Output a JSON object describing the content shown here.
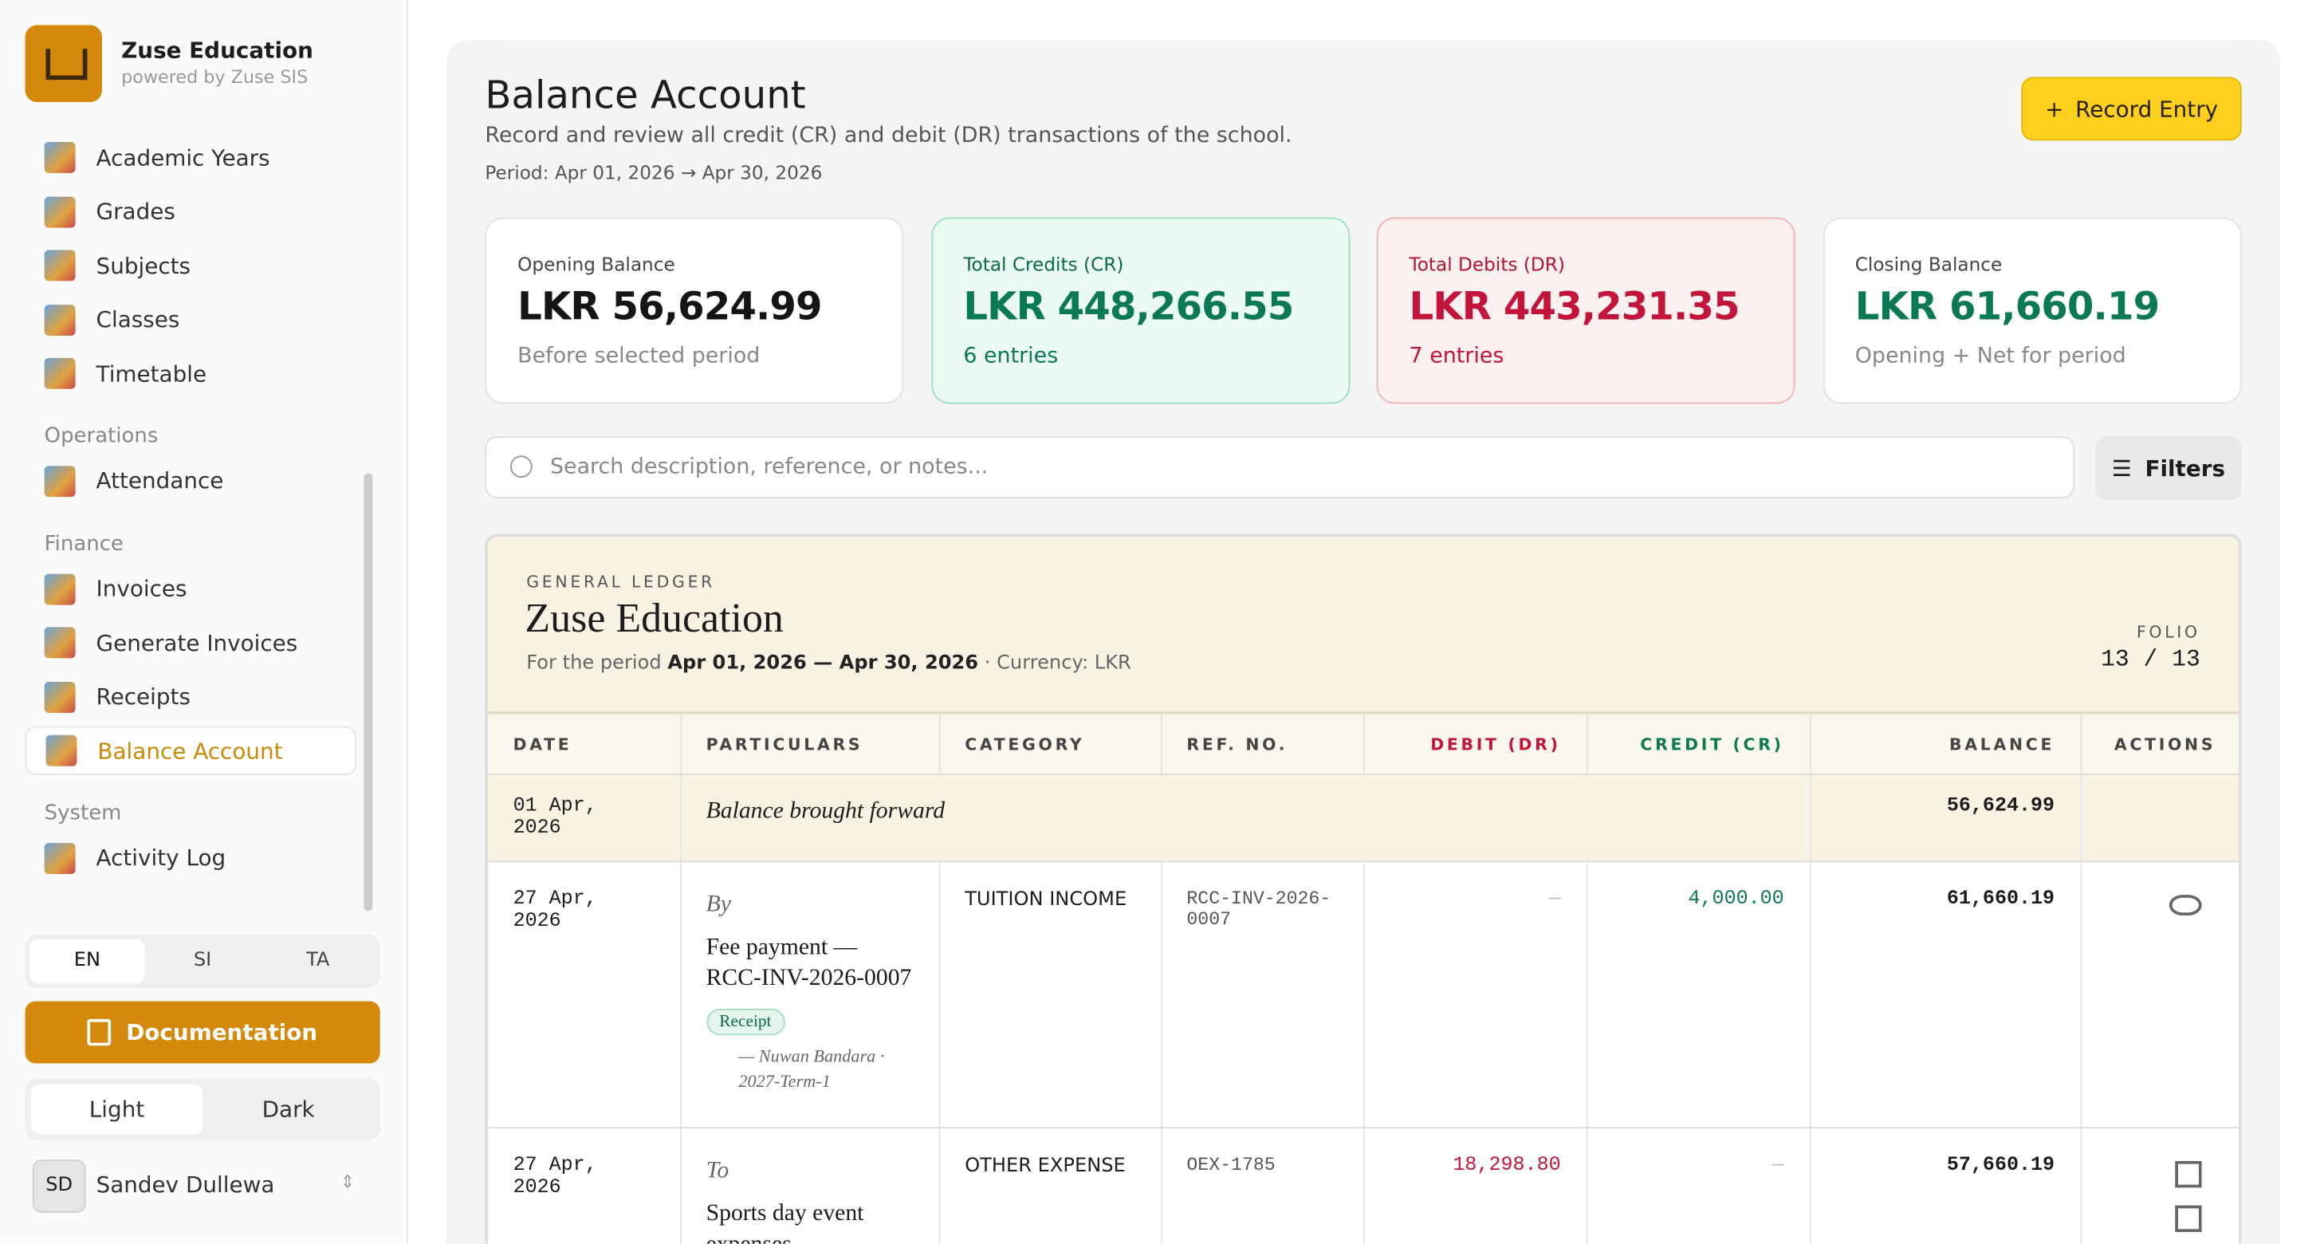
{
  "brand": {
    "name": "Zuse Education",
    "tagline": "powered by Zuse SIS"
  },
  "nav_groups": [
    {
      "items": [
        {
          "label": "Academic Years"
        },
        {
          "label": "Grades"
        },
        {
          "label": "Subjects"
        },
        {
          "label": "Classes"
        },
        {
          "label": "Timetable"
        }
      ]
    },
    {
      "title": "Operations",
      "items": [
        {
          "label": "Attendance"
        }
      ]
    },
    {
      "title": "Finance",
      "items": [
        {
          "label": "Invoices"
        },
        {
          "label": "Generate Invoices"
        },
        {
          "label": "Receipts"
        },
        {
          "label": "Balance Account",
          "active": true
        }
      ]
    },
    {
      "title": "System",
      "items": [
        {
          "label": "Activity Log"
        }
      ]
    }
  ],
  "languages": [
    {
      "label": "EN",
      "selected": true
    },
    {
      "label": "SI"
    },
    {
      "label": "TA"
    }
  ],
  "documentation_button": "Documentation",
  "themes": [
    {
      "label": "Light",
      "selected": true
    },
    {
      "label": "Dark"
    }
  ],
  "user": {
    "initials": "SD",
    "name": "Sandev Dullewa"
  },
  "header": {
    "title": "Balance Account",
    "subtitle": "Record and review all credit (CR) and debit (DR) transactions of the school.",
    "period": "Period: Apr 01, 2026 → Apr 30, 2026"
  },
  "record_button": "Record Entry",
  "stats": [
    {
      "label": "Opening Balance",
      "value": "LKR 56,624.99",
      "note": "Before selected period",
      "tone": "neutral"
    },
    {
      "label": "Total Credits (CR)",
      "value": "LKR 448,266.55",
      "note": "6 entries",
      "tone": "credit"
    },
    {
      "label": "Total Debits (DR)",
      "value": "LKR 443,231.35",
      "note": "7 entries",
      "tone": "debit"
    },
    {
      "label": "Closing Balance",
      "value": "LKR 61,660.19",
      "note": "Opening + Net for period",
      "tone": "closing"
    }
  ],
  "search_placeholder": "Search description, reference, or notes...",
  "filters_button": "Filters",
  "ledger": {
    "kicker": "GENERAL LEDGER",
    "name": "Zuse Education",
    "period_prefix": "For the period",
    "period": "Apr 01, 2026 — Apr 30, 2026",
    "currency": "Currency: LKR",
    "folio_label": "FOLIO",
    "folio": "13 / 13",
    "columns": [
      "DATE",
      "PARTICULARS",
      "CATEGORY",
      "REF. NO.",
      "DEBIT (DR)",
      "CREDIT (CR)",
      "BALANCE",
      "ACTIONS"
    ],
    "opening_row": {
      "date": "01 Apr, 2026",
      "particulars": "Balance brought forward",
      "balance": "56,624.99"
    },
    "rows": [
      {
        "date": "27 Apr, 2026",
        "prefix": "By",
        "particulars": "Fee payment — RCC-INV-2026-0007",
        "badge": "Receipt",
        "meta": "— Nuwan Bandara · 2027-Term-1",
        "category": "TUITION INCOME",
        "ref": "RCC-INV-2026-0007",
        "debit": "—",
        "credit": "4,000.00",
        "balance": "61,660.19",
        "actions": [
          "view"
        ]
      },
      {
        "date": "27 Apr, 2026",
        "prefix": "To",
        "particulars": "Sports day event expenses",
        "category": "OTHER EXPENSE",
        "ref": "OEX-1785",
        "debit": "18,298.80",
        "credit": "—",
        "balance": "57,660.19",
        "actions": [
          "edit",
          "delete"
        ]
      }
    ]
  }
}
